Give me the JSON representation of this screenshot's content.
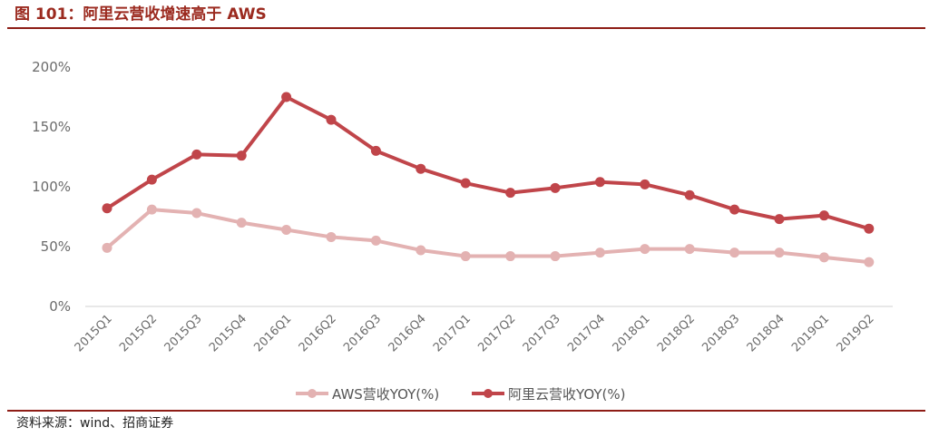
{
  "header": {
    "title": "图 101：阿里云营收增速高于 AWS"
  },
  "footer": {
    "source": "资料来源：wind、招商证券"
  },
  "colors": {
    "rule": "#8e1d16",
    "title": "#9b2a1f",
    "aws": "#e3b2b2",
    "aliyun": "#c0454a",
    "axis": "#d9d9d9"
  },
  "chart_data": {
    "type": "line",
    "title": "阿里云营收增速高于 AWS",
    "xlabel": "",
    "ylabel": "",
    "ylim": [
      0,
      200
    ],
    "yticks": [
      "0%",
      "50%",
      "100%",
      "150%",
      "200%"
    ],
    "ytick_values": [
      0,
      50,
      100,
      150,
      200
    ],
    "grid": false,
    "legend_position": "bottom",
    "categories": [
      "2015Q1",
      "2015Q2",
      "2015Q3",
      "2015Q4",
      "2016Q1",
      "2016Q2",
      "2016Q3",
      "2016Q4",
      "2017Q1",
      "2017Q2",
      "2017Q3",
      "2017Q4",
      "2018Q1",
      "2018Q2",
      "2018Q3",
      "2018Q4",
      "2019Q1",
      "2019Q2"
    ],
    "series": [
      {
        "name": "AWS营收YOY(%)",
        "color": "#e3b2b2",
        "values": [
          49,
          81,
          78,
          70,
          64,
          58,
          55,
          47,
          42,
          42,
          42,
          45,
          48,
          48,
          45,
          45,
          41,
          37
        ]
      },
      {
        "name": "阿里云营收YOY(%)",
        "color": "#c0454a",
        "values": [
          82,
          106,
          127,
          126,
          175,
          156,
          130,
          115,
          103,
          95,
          99,
          104,
          102,
          93,
          81,
          73,
          76,
          65
        ]
      }
    ]
  }
}
